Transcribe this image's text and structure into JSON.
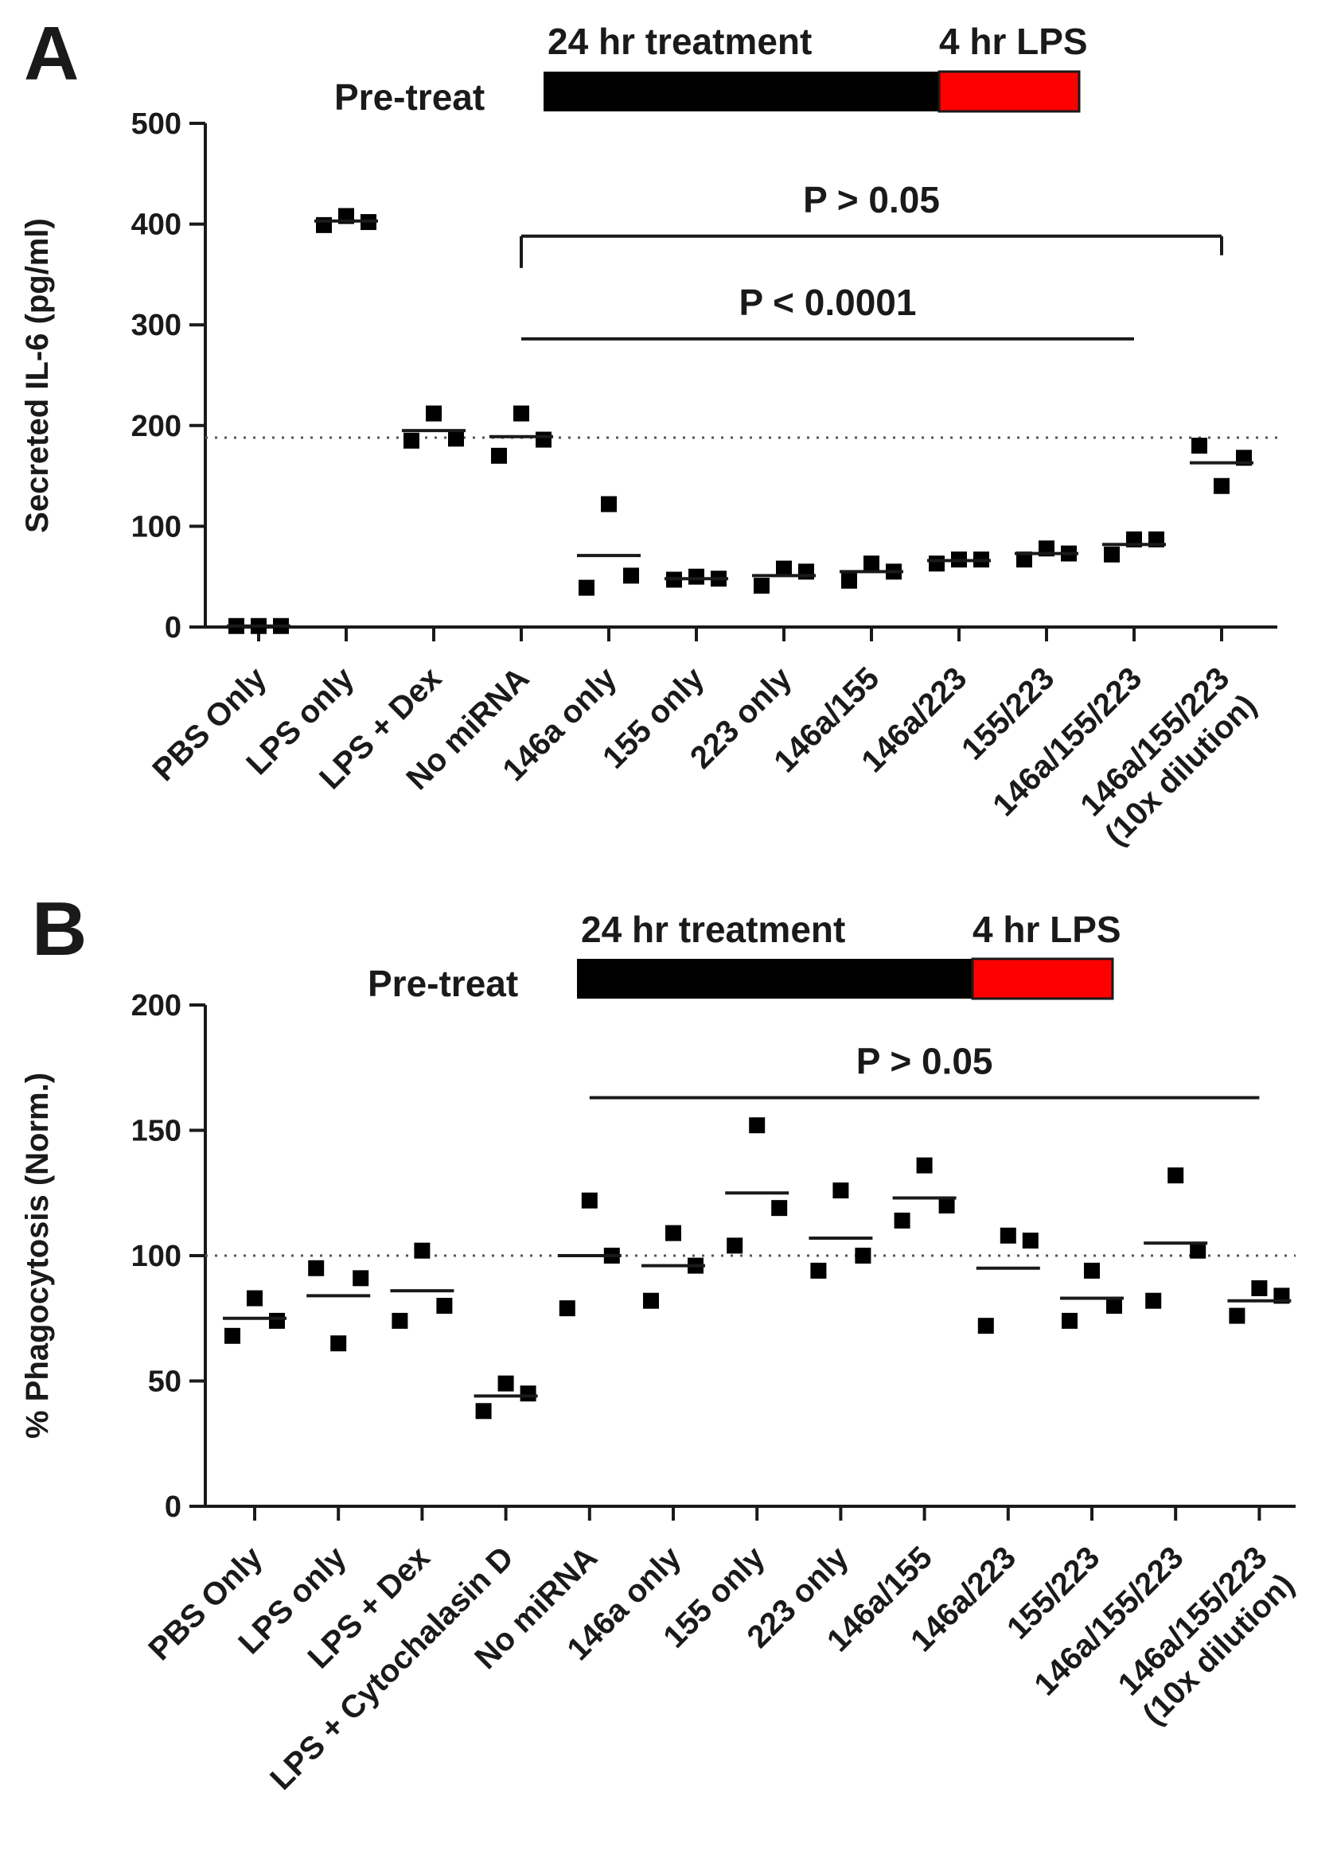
{
  "colors": {
    "ink": "#1a1a1a",
    "bar_treatment": "#000000",
    "bar_lps": "#ff0000",
    "reference_line": "#555555"
  },
  "chart_data": [
    {
      "type": "scatter",
      "panel_label": "A",
      "ylabel": "Secreted IL-6 (pg/ml)",
      "ylim": [
        0,
        500
      ],
      "yticks": [
        "0",
        "100",
        "200",
        "300",
        "400",
        "500"
      ],
      "reference_line": 188,
      "timeline": {
        "pretreat_label": "Pre-treat",
        "treatment_label": "24 hr treatment",
        "lps_label": "4 hr LPS"
      },
      "categories": [
        "PBS Only",
        "LPS only",
        "LPS + Dex",
        "No miRNA",
        "146a only",
        "155 only",
        "223 only",
        "146a/155",
        "146a/223",
        "155/223",
        "146a/155/223",
        "146a/155/223 (10x dilution)"
      ],
      "points": [
        [
          1,
          1,
          1
        ],
        [
          399,
          408,
          402
        ],
        [
          185,
          212,
          187
        ],
        [
          170,
          212,
          186
        ],
        [
          39,
          122,
          51
        ],
        [
          47,
          50,
          48
        ],
        [
          41,
          58,
          55
        ],
        [
          46,
          63,
          55
        ],
        [
          63,
          67,
          67
        ],
        [
          67,
          78,
          73
        ],
        [
          72,
          87,
          87
        ],
        [
          180,
          140,
          168
        ]
      ],
      "means": [
        1,
        403,
        195,
        189,
        71,
        48,
        51,
        55,
        66,
        73,
        82,
        163
      ],
      "brackets": [
        {
          "label": "P > 0.05",
          "from": 3,
          "to": 11,
          "y": 388,
          "style": "bracket"
        },
        {
          "label": "P < 0.0001",
          "from": 3,
          "to": 10,
          "y": 286,
          "style": "line"
        }
      ]
    },
    {
      "type": "scatter",
      "panel_label": "B",
      "ylabel": "% Phagocytosis (Norm.)",
      "ylim": [
        0,
        200
      ],
      "yticks": [
        "0",
        "50",
        "100",
        "150",
        "200"
      ],
      "reference_line": 100,
      "timeline": {
        "pretreat_label": "Pre-treat",
        "treatment_label": "24 hr treatment",
        "lps_label": "4 hr LPS"
      },
      "categories": [
        "PBS Only",
        "LPS only",
        "LPS + Dex",
        "LPS + Cytochalasin D",
        "No miRNA",
        "146a only",
        "155 only",
        "223 only",
        "146a/155",
        "146a/223",
        "155/223",
        "146a/155/223",
        "146a/155/223 (10x dilution)"
      ],
      "points": [
        [
          68,
          83,
          74
        ],
        [
          95,
          65,
          91
        ],
        [
          74,
          102,
          80
        ],
        [
          38,
          49,
          45
        ],
        [
          79,
          122,
          100
        ],
        [
          82,
          109,
          96
        ],
        [
          104,
          152,
          119
        ],
        [
          94,
          126,
          100
        ],
        [
          114,
          136,
          120
        ],
        [
          72,
          108,
          106
        ],
        [
          74,
          94,
          80
        ],
        [
          82,
          132,
          102
        ],
        [
          76,
          87,
          84
        ]
      ],
      "means": [
        75,
        84,
        86,
        44,
        100,
        96,
        125,
        107,
        123,
        95,
        83,
        105,
        82
      ],
      "brackets": [
        {
          "label": "P > 0.05",
          "from": 4,
          "to": 12,
          "y": 163,
          "style": "line"
        }
      ]
    }
  ]
}
